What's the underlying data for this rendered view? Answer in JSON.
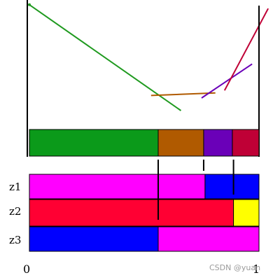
{
  "rows": {
    "z1": {
      "label": "z1",
      "segments": [
        {
          "from": 0.0,
          "to": 0.765,
          "color": "#ff00ff"
        },
        {
          "from": 0.765,
          "to": 1.0,
          "color": "#0000ff"
        }
      ]
    },
    "z2": {
      "label": "z2",
      "segments": [
        {
          "from": 0.0,
          "to": 0.889,
          "color": "#ff0033"
        },
        {
          "from": 0.889,
          "to": 1.0,
          "color": "#ffff00"
        }
      ]
    },
    "z3": {
      "label": "z3",
      "segments": [
        {
          "from": 0.0,
          "to": 0.561,
          "color": "#0000ff"
        },
        {
          "from": 0.561,
          "to": 1.0,
          "color": "#ff00ff"
        }
      ]
    }
  },
  "envelope_bar": [
    {
      "from": 0.0,
      "to": 0.561,
      "color": "#0b9a1a"
    },
    {
      "from": 0.561,
      "to": 0.759,
      "color": "#b05a00"
    },
    {
      "from": 0.759,
      "to": 0.884,
      "color": "#6a00b8"
    },
    {
      "from": 0.884,
      "to": 1.0,
      "color": "#bf0036"
    }
  ],
  "lines": [
    {
      "color": "#1f9a1f",
      "p1": [
        0.0,
        0.99
      ],
      "p2": [
        0.66,
        0.15
      ]
    },
    {
      "color": "#b05a00",
      "p1": [
        0.53,
        0.27
      ],
      "p2": [
        0.81,
        0.29
      ]
    },
    {
      "color": "#6a00b8",
      "p1": [
        0.75,
        0.25
      ],
      "p2": [
        0.97,
        0.52
      ]
    },
    {
      "color": "#bf0036",
      "p1": [
        0.85,
        0.31
      ],
      "p2": [
        1.04,
        0.96
      ]
    }
  ],
  "breakpoints": [
    0.561,
    0.759,
    0.889
  ],
  "x_axis": {
    "left_label": "0",
    "right_label": "1"
  },
  "watermark": "CSDN @yuan"
}
